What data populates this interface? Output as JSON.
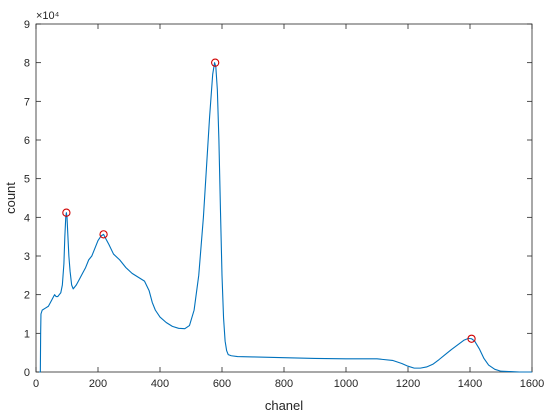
{
  "chart_data": {
    "type": "line",
    "title": "",
    "xlabel": "chanel",
    "ylabel": "count",
    "exponent_label": "×10⁴",
    "xlim": [
      0,
      1600
    ],
    "ylim": [
      0,
      9
    ],
    "x_ticks": [
      0,
      200,
      400,
      600,
      800,
      1000,
      1200,
      1400,
      1600
    ],
    "x_tick_labels": [
      "0",
      "200",
      "400",
      "600",
      "800",
      "1000",
      "1200",
      "1400",
      "1600"
    ],
    "y_ticks": [
      0,
      1,
      2,
      3,
      4,
      5,
      6,
      7,
      8,
      9
    ],
    "y_tick_labels": [
      "0",
      "1",
      "2",
      "3",
      "4",
      "5",
      "6",
      "7",
      "8",
      "9"
    ],
    "grid": false,
    "line_color": "#0072BD",
    "marker_color": "#D00000",
    "series": [
      {
        "x": [
          10,
          14,
          15,
          16,
          20,
          30,
          40,
          50,
          60,
          65,
          70,
          75,
          80,
          85,
          90,
          93,
          96,
          98,
          100,
          103,
          106,
          110,
          115,
          120,
          130,
          140,
          150,
          160,
          170,
          180,
          190,
          200,
          210,
          218,
          225,
          235,
          250,
          270,
          290,
          310,
          330,
          350,
          365,
          375,
          385,
          400,
          420,
          440,
          460,
          480,
          495,
          510,
          525,
          540,
          550,
          560,
          570,
          576,
          580,
          585,
          590,
          595,
          600,
          605,
          610,
          615,
          620,
          630,
          650,
          700,
          800,
          900,
          1000,
          1100,
          1150,
          1180,
          1200,
          1220,
          1240,
          1260,
          1280,
          1300,
          1320,
          1340,
          1360,
          1380,
          1395,
          1405,
          1415,
          1430,
          1445,
          1460,
          1480,
          1500,
          1530,
          1560,
          1600
        ],
        "y": [
          0,
          0,
          1.0,
          1.5,
          1.6,
          1.65,
          1.7,
          1.85,
          2.0,
          1.95,
          1.95,
          2.0,
          2.05,
          2.25,
          2.8,
          3.5,
          4.0,
          4.12,
          4.0,
          3.5,
          3.0,
          2.6,
          2.25,
          2.15,
          2.25,
          2.4,
          2.55,
          2.7,
          2.9,
          3.0,
          3.2,
          3.4,
          3.52,
          3.56,
          3.45,
          3.3,
          3.05,
          2.9,
          2.7,
          2.55,
          2.45,
          2.35,
          2.1,
          1.8,
          1.6,
          1.42,
          1.28,
          1.18,
          1.13,
          1.12,
          1.2,
          1.6,
          2.5,
          4.0,
          5.3,
          6.6,
          7.7,
          8.0,
          7.9,
          7.3,
          6.0,
          4.2,
          2.5,
          1.4,
          0.8,
          0.55,
          0.45,
          0.42,
          0.4,
          0.39,
          0.37,
          0.35,
          0.34,
          0.34,
          0.3,
          0.22,
          0.15,
          0.1,
          0.1,
          0.13,
          0.2,
          0.32,
          0.45,
          0.58,
          0.7,
          0.82,
          0.87,
          0.86,
          0.8,
          0.6,
          0.35,
          0.18,
          0.07,
          0.02,
          0.01,
          0.0,
          0.0
        ]
      }
    ],
    "peaks": {
      "x": [
        98,
        218,
        578,
        1405
      ],
      "y": [
        4.12,
        3.56,
        8.0,
        0.86
      ]
    }
  }
}
